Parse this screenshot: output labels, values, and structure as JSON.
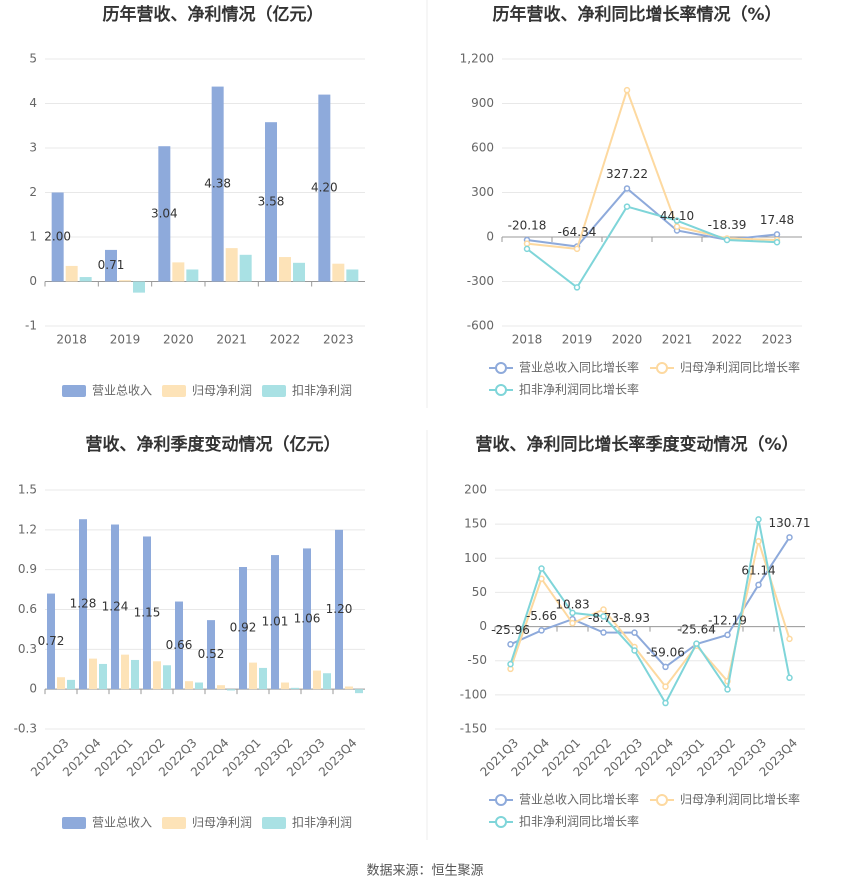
{
  "chart_data": [
    {
      "type": "bar",
      "title": "历年营收、净利情况（亿元）",
      "categories": [
        "2018",
        "2019",
        "2020",
        "2021",
        "2022",
        "2023"
      ],
      "series": [
        {
          "name": "营业总收入",
          "color": "#8eaadb",
          "values": [
            2.0,
            0.71,
            3.04,
            4.38,
            3.58,
            4.2
          ],
          "value_labels": [
            "2.00",
            "0.71",
            "3.04",
            "4.38",
            "3.58",
            "4.20"
          ]
        },
        {
          "name": "归母净利润",
          "color": "#fde3b8",
          "values": [
            0.35,
            0.03,
            0.43,
            0.75,
            0.55,
            0.4
          ]
        },
        {
          "name": "扣非净利润",
          "color": "#a9e1e4",
          "values": [
            0.1,
            -0.25,
            0.27,
            0.6,
            0.42,
            0.27
          ]
        }
      ],
      "ylim": [
        -1,
        5
      ],
      "yticks": [
        -1,
        0,
        1,
        2,
        3,
        4,
        5
      ],
      "grid": true
    },
    {
      "type": "line",
      "title": "历年营收、净利同比增长率情况（%）",
      "categories": [
        "2018",
        "2019",
        "2020",
        "2021",
        "2022",
        "2023"
      ],
      "series": [
        {
          "name": "营业总收入同比增长率",
          "color": "#8eaadb",
          "values": [
            -20.18,
            -64.34,
            327.22,
            44.1,
            -18.39,
            17.48
          ],
          "value_labels": [
            "-20.18",
            "-64.34",
            "327.22",
            "44.10",
            "-18.39",
            "17.48"
          ]
        },
        {
          "name": "归母净利润同比增长率",
          "color": "#fdd9a0",
          "values": [
            -45,
            -80,
            990,
            70,
            -10,
            -20
          ]
        },
        {
          "name": "扣非净利润同比增长率",
          "color": "#7fd5d9",
          "values": [
            -80,
            -340,
            205,
            110,
            -20,
            -35
          ]
        }
      ],
      "ylim": [
        -600,
        1200
      ],
      "yticks": [
        -600,
        -300,
        0,
        300,
        600,
        900,
        {
          "value": 1200,
          "label": "1,200"
        }
      ],
      "grid": true
    },
    {
      "type": "bar",
      "title": "营收、净利季度变动情况（亿元）",
      "categories": [
        "2021Q3",
        "2021Q4",
        "2022Q1",
        "2022Q2",
        "2022Q3",
        "2022Q4",
        "2023Q1",
        "2023Q2",
        "2023Q3",
        "2023Q4"
      ],
      "series": [
        {
          "name": "营业总收入",
          "color": "#8eaadb",
          "values": [
            0.72,
            1.28,
            1.24,
            1.15,
            0.66,
            0.52,
            0.92,
            1.01,
            1.06,
            1.2
          ],
          "value_labels": [
            "0.72",
            "1.28",
            "1.24",
            "1.15",
            "0.66",
            "0.52",
            "0.92",
            "1.01",
            "1.06",
            "1.20"
          ]
        },
        {
          "name": "归母净利润",
          "color": "#fde3b8",
          "values": [
            0.09,
            0.23,
            0.26,
            0.21,
            0.06,
            0.03,
            0.2,
            0.05,
            0.14,
            0.02
          ]
        },
        {
          "name": "扣非净利润",
          "color": "#a9e1e4",
          "values": [
            0.07,
            0.19,
            0.22,
            0.18,
            0.05,
            -0.01,
            0.16,
            0.01,
            0.12,
            -0.03
          ]
        }
      ],
      "ylim": [
        -0.3,
        1.5
      ],
      "yticks": [
        -0.3,
        0,
        0.3,
        0.6,
        0.9,
        1.2,
        1.5
      ],
      "grid": true
    },
    {
      "type": "line",
      "title": "营收、净利同比增长率季度变动情况（%）",
      "categories": [
        "2021Q3",
        "2021Q4",
        "2022Q1",
        "2022Q2",
        "2022Q3",
        "2022Q4",
        "2023Q1",
        "2023Q2",
        "2023Q3",
        "2023Q4"
      ],
      "series": [
        {
          "name": "营业总收入同比增长率",
          "color": "#8eaadb",
          "values": [
            -25.96,
            -5.66,
            10.83,
            -8.73,
            -8.93,
            -59.06,
            -25.64,
            -12.19,
            61.14,
            130.71
          ],
          "value_labels": [
            "-25.96",
            "-5.66",
            "10.83",
            "-8.73",
            "-8.93",
            "-59.06",
            "-25.64",
            "-12.19",
            "61.14",
            "130.71"
          ]
        },
        {
          "name": "归母净利润同比增长率",
          "color": "#fdd9a0",
          "values": [
            -62,
            70,
            5,
            25,
            -30,
            -88,
            -28,
            -80,
            125,
            -18
          ]
        },
        {
          "name": "扣非净利润同比增长率",
          "color": "#7fd5d9",
          "values": [
            -55,
            85,
            20,
            15,
            -35,
            -112,
            -25,
            -92,
            157,
            -75
          ]
        }
      ],
      "ylim": [
        -150,
        200
      ],
      "yticks": [
        -150,
        -100,
        -50,
        0,
        50,
        100,
        150,
        200
      ],
      "grid": true
    }
  ],
  "source": "数据来源：恒生聚源"
}
